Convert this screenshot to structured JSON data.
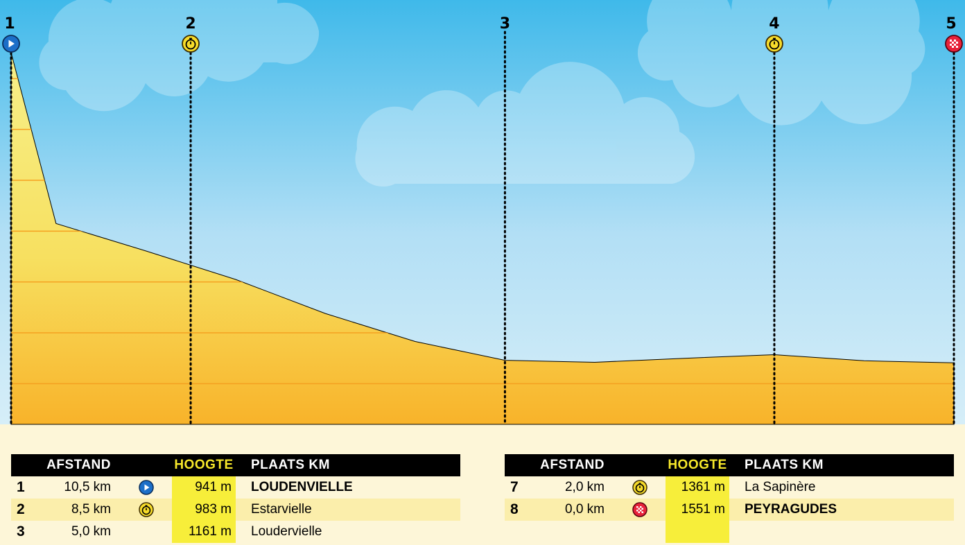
{
  "chart_data": {
    "type": "area",
    "x_unit": "km",
    "x": [
      0,
      1,
      2,
      3,
      4,
      5,
      6,
      7,
      8,
      9,
      10,
      10.5
    ],
    "y": [
      941,
      945,
      957,
      950,
      942,
      946,
      983,
      1038,
      1105,
      1161,
      1215,
      1551
    ],
    "ylim": [
      820,
      1600
    ],
    "grid": true,
    "markers": [
      {
        "label": "1",
        "km": 10.5,
        "icon": "start-icon"
      },
      {
        "label": "2",
        "km": 8.5,
        "icon": "stopwatch-icon"
      },
      {
        "label": "3",
        "km": 5.0,
        "icon": ""
      },
      {
        "label": "4",
        "km": 2.0,
        "icon": "stopwatch-icon"
      },
      {
        "label": "5",
        "km": 0.0,
        "icon": "finish-flag-icon"
      }
    ]
  },
  "tables": [
    {
      "headers": {
        "afstand": "AFSTAND",
        "hoogte": "HOOGTE",
        "plaats": "PLAATS KM"
      },
      "rows": [
        {
          "n": "1",
          "afstand": "10,5 km",
          "icon": "start-icon",
          "hoogte": "941 m",
          "plaats": "LOUDENVIELLE",
          "bold": true
        },
        {
          "n": "2",
          "afstand": "8,5 km",
          "icon": "stopwatch-icon",
          "hoogte": "983 m",
          "plaats": "Estarvielle",
          "bold": false
        },
        {
          "n": "3",
          "afstand": "5,0 km",
          "icon": "",
          "hoogte": "1161 m",
          "plaats": "Loudervielle",
          "bold": false
        }
      ]
    },
    {
      "headers": {
        "afstand": "AFSTAND",
        "hoogte": "HOOGTE",
        "plaats": "PLAATS KM"
      },
      "rows": [
        {
          "n": "7",
          "afstand": "2,0 km",
          "icon": "stopwatch-icon",
          "hoogte": "1361 m",
          "plaats": "La Sapinère",
          "bold": false
        },
        {
          "n": "8",
          "afstand": "0,0 km",
          "icon": "finish-flag-icon",
          "hoogte": "1551 m",
          "plaats": "PEYRAGUDES",
          "bold": true
        }
      ]
    }
  ],
  "colors": {
    "sky_top": "#3fb9ea",
    "sky_bottom": "#d3ecf8",
    "mountain_top": "#f7ee7a",
    "mountain_bottom": "#f8b830",
    "grid_line": "#f5a020",
    "start": "#1c6fc8",
    "stopwatch": "#f7dc2a",
    "finish": "#e8223a",
    "hoogte_column": "#f7ee3a"
  }
}
